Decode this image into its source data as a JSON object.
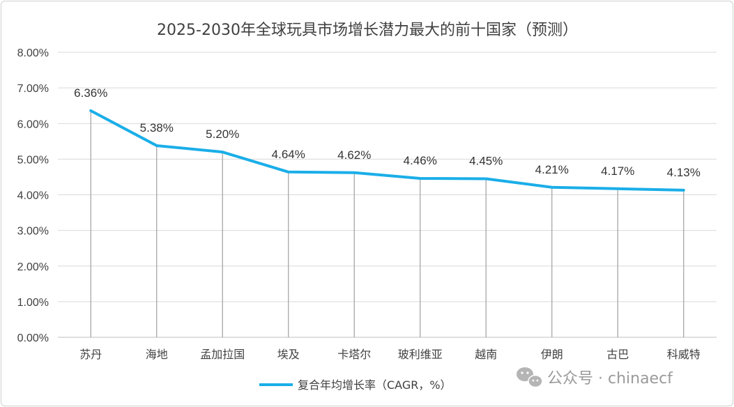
{
  "chart_data": {
    "type": "line",
    "title": "2025-2030年全球玩具市场增长潜力最大的前十国家（预测）",
    "categories": [
      "苏丹",
      "海地",
      "孟加拉国",
      "埃及",
      "卡塔尔",
      "玻利维亚",
      "越南",
      "伊朗",
      "古巴",
      "科威特"
    ],
    "series": [
      {
        "name": "复合年均增长率（CAGR，%）",
        "values": [
          6.36,
          5.38,
          5.2,
          4.64,
          4.62,
          4.46,
          4.45,
          4.21,
          4.17,
          4.13
        ],
        "data_labels": [
          "6.36%",
          "5.38%",
          "5.20%",
          "4.64%",
          "4.62%",
          "4.46%",
          "4.45%",
          "4.21%",
          "4.17%",
          "4.13%"
        ],
        "color": "#1aaee8"
      }
    ],
    "ylim": [
      0,
      8
    ],
    "y_ticks": [
      0,
      1,
      2,
      3,
      4,
      5,
      6,
      7,
      8
    ],
    "y_tick_labels": [
      "0.00%",
      "1.00%",
      "2.00%",
      "3.00%",
      "4.00%",
      "5.00%",
      "6.00%",
      "7.00%",
      "8.00%"
    ],
    "grid": true,
    "drop_lines": true,
    "legend_position": "bottom-center",
    "xlabel": "",
    "ylabel": ""
  },
  "watermark": {
    "text": "公众号 · chinaecf",
    "icon": "wechat-icon"
  },
  "colors": {
    "line": "#1aaee8",
    "grid": "#d9d9d9",
    "drop_line": "#a6a6a6",
    "text": "#404040"
  }
}
